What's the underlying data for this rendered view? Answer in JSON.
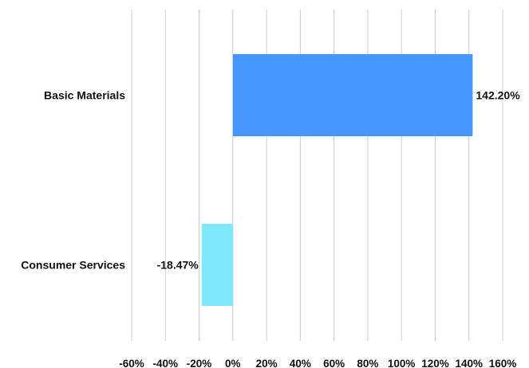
{
  "chart_data": {
    "type": "bar",
    "orientation": "horizontal",
    "categories": [
      "Basic Materials",
      "Consumer Services"
    ],
    "values": [
      142.2,
      -18.47
    ],
    "value_labels": [
      "142.20%",
      "-18.47%"
    ],
    "colors": [
      "#4596ff",
      "#7ee8ff"
    ],
    "x_ticks": [
      "-60%",
      "-40%",
      "-20%",
      "0%",
      "20%",
      "40%",
      "60%",
      "80%",
      "100%",
      "120%",
      "140%",
      "160%"
    ],
    "xlim": [
      -60,
      160
    ],
    "grid": true,
    "title": "",
    "xlabel": "",
    "ylabel": ""
  }
}
